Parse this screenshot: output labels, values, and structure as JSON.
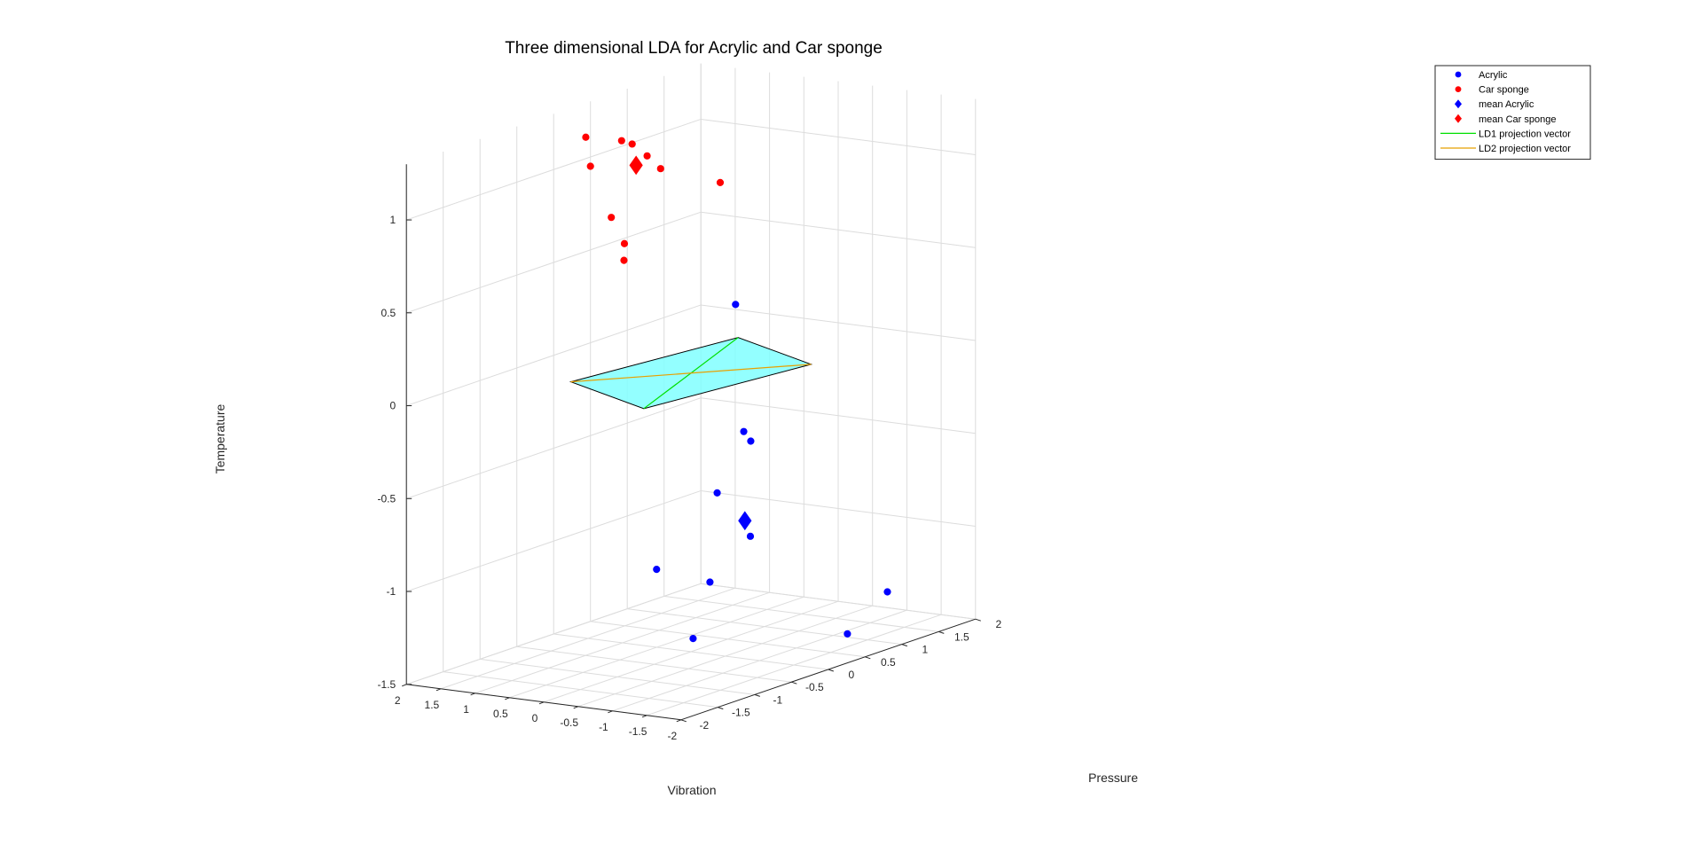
{
  "chart_data": {
    "type": "scatter",
    "title": "Three dimensional LDA for  Acrylic and  Car sponge",
    "xlabel": "Vibration",
    "ylabel": "Pressure",
    "zlabel": "Temperature",
    "xlim": [
      -2,
      2
    ],
    "ylim": [
      -2,
      2
    ],
    "zlim": [
      -1.5,
      1.3
    ],
    "xticks": [
      2,
      1.5,
      1,
      0.5,
      0,
      -0.5,
      -1,
      -1.5,
      -2
    ],
    "yticks": [
      -2,
      -1.5,
      -1,
      -0.5,
      0,
      0.5,
      1,
      1.5,
      2
    ],
    "zticks": [
      1,
      0.5,
      0,
      -0.5,
      -1,
      -1.5
    ],
    "grid": true,
    "legend_position": "top-right",
    "series": [
      {
        "name": "Acrylic",
        "marker": "circle",
        "color": "#0000ff",
        "points": [
          [
            -0.36,
            0.27,
            0.35
          ],
          [
            -0.93,
            -0.15,
            -0.25
          ],
          [
            -1.3,
            -0.4,
            -0.25
          ],
          [
            -0.65,
            -0.25,
            -0.58
          ],
          [
            -1.08,
            -0.2,
            -0.8
          ],
          [
            -0.92,
            -0.6,
            -1.0
          ],
          [
            -0.25,
            -0.7,
            -0.95
          ],
          [
            -1.95,
            0.85,
            -1.2
          ],
          [
            -1.05,
            -0.95,
            -1.25
          ],
          [
            -1.85,
            0.4,
            -1.37
          ]
        ]
      },
      {
        "name": "Car sponge",
        "marker": "circle",
        "color": "#ff0000",
        "points": [
          [
            1.8,
            0.25,
            1.15
          ],
          [
            1.6,
            0.55,
            1.1
          ],
          [
            1.5,
            0.6,
            1.08
          ],
          [
            1.55,
            0.85,
            0.98
          ],
          [
            2.0,
            0.5,
            0.95
          ],
          [
            1.3,
            0.8,
            0.93
          ],
          [
            0.7,
            1.05,
            0.85
          ],
          [
            1.75,
            0.55,
            0.68
          ],
          [
            1.72,
            0.7,
            0.52
          ],
          [
            1.78,
            0.75,
            0.42
          ]
        ]
      },
      {
        "name": "mean  Acrylic",
        "marker": "diamond",
        "color": "#0000ff",
        "points": [
          [
            -1.0,
            -0.2,
            -0.72
          ]
        ]
      },
      {
        "name": "mean  Car sponge",
        "marker": "diamond",
        "color": "#ff0000",
        "points": [
          [
            1.55,
            0.7,
            0.95
          ]
        ]
      }
    ],
    "plane": {
      "color": "#80ffff",
      "corners": [
        [
          1.0,
          -0.7,
          0.0
        ],
        [
          0.6,
          1.2,
          0.0
        ],
        [
          -1.0,
          0.7,
          0.0
        ],
        [
          -0.6,
          -1.2,
          0.0
        ]
      ]
    },
    "vectors": [
      {
        "name": "LD1 projection vector",
        "color": "#00e000",
        "from": [
          -0.6,
          -1.2,
          0.0
        ],
        "to": [
          0.6,
          1.2,
          0.0
        ]
      },
      {
        "name": "LD2 projection vector",
        "color": "#e8a000",
        "from": [
          1.0,
          -0.7,
          0.0
        ],
        "to": [
          -1.0,
          0.7,
          0.0
        ]
      }
    ]
  }
}
